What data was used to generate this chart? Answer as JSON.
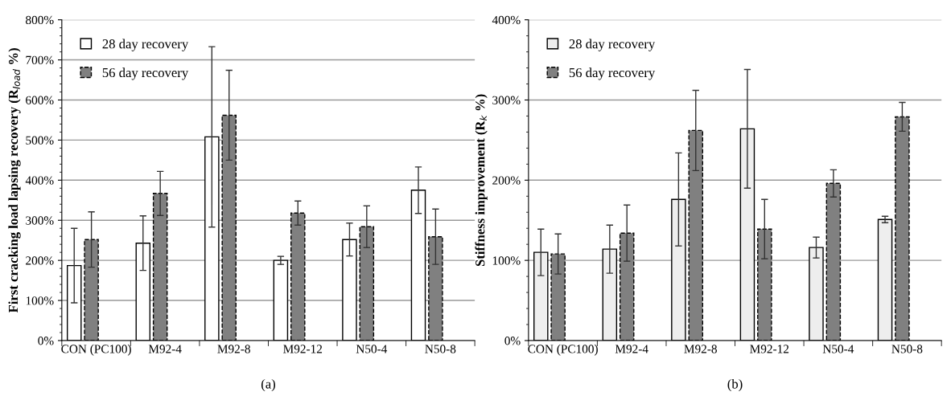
{
  "chart_data": [
    {
      "type": "bar",
      "ylabel": "First cracking load lapsing recovery (R$_{load}$ %)",
      "annotations": [
        "(a)"
      ],
      "categories": [
        "CON (PC100)",
        "M92-4",
        "M92-8",
        "M92-12",
        "N50-4",
        "N50-8"
      ],
      "series": [
        {
          "name": "28 day recovery",
          "color": "#ffffff",
          "values": [
            187,
            243,
            508,
            200,
            252,
            375
          ],
          "errors": [
            93,
            68,
            225,
            10,
            41,
            58
          ]
        },
        {
          "name": "56 day recovery",
          "color": "#808080",
          "line_style": "dashed",
          "values": [
            252,
            367,
            562,
            318,
            284,
            259
          ],
          "errors": [
            69,
            55,
            112,
            30,
            52,
            69
          ]
        }
      ],
      "ylim": [
        0,
        800
      ],
      "yticks": [
        {
          "value": 0,
          "label": "0%"
        },
        {
          "value": 100,
          "label": "100%"
        },
        {
          "value": 200,
          "label": "200%"
        },
        {
          "value": 300,
          "label": "300%"
        },
        {
          "value": 400,
          "label": "400%"
        },
        {
          "value": 500,
          "label": "500%"
        },
        {
          "value": 600,
          "label": "600%"
        },
        {
          "value": 700,
          "label": "700%"
        },
        {
          "value": 800,
          "label": "800%"
        }
      ],
      "grid": "y",
      "legend": "top left"
    },
    {
      "type": "bar",
      "ylabel": "Stiffness improvement (R$_{k}$ %)",
      "annotations": [
        "(b)"
      ],
      "categories": [
        "CON (PC100)",
        "M92-4",
        "M92-8",
        "M92-12",
        "N50-4",
        "N50-8"
      ],
      "series": [
        {
          "name": "28 day recovery",
          "color": "#eeeeee",
          "values": [
            110,
            114,
            176,
            264,
            116,
            151
          ],
          "errors": [
            29,
            30,
            58,
            74,
            13,
            4
          ]
        },
        {
          "name": "56 day recovery",
          "color": "#808080",
          "line_style": "dashed",
          "values": [
            108,
            134,
            262,
            139,
            196,
            279
          ],
          "errors": [
            25,
            35,
            50,
            37,
            17,
            18
          ]
        }
      ],
      "ylim": [
        0,
        400
      ],
      "yticks": [
        {
          "value": 0,
          "label": "0%"
        },
        {
          "value": 100,
          "label": "100%"
        },
        {
          "value": 200,
          "label": "200%"
        },
        {
          "value": 300,
          "label": "300%"
        },
        {
          "value": 400,
          "label": "400%"
        }
      ],
      "grid": "y",
      "legend": "top left"
    }
  ]
}
